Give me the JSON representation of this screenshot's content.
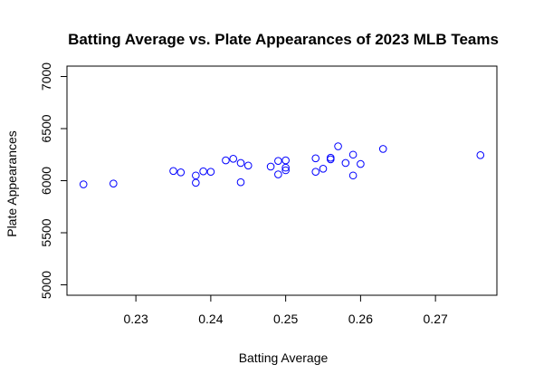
{
  "chart_data": {
    "type": "scatter",
    "title": "Batting Average vs. Plate Appearances of 2023 MLB Teams",
    "xlabel": "Batting Average",
    "ylabel": "Plate Appearances",
    "xlim": [
      0.2208,
      0.2782
    ],
    "ylim": [
      4900,
      7100
    ],
    "xticks": [
      "0.23",
      "0.24",
      "0.25",
      "0.26",
      "0.27"
    ],
    "yticks": [
      "5000",
      "5500",
      "6000",
      "6500",
      "7000"
    ],
    "grid": false,
    "marker": "open-circle",
    "marker_color": "#0000ff",
    "points": [
      {
        "x": 0.223,
        "y": 5965
      },
      {
        "x": 0.227,
        "y": 5972
      },
      {
        "x": 0.235,
        "y": 6093
      },
      {
        "x": 0.236,
        "y": 6080
      },
      {
        "x": 0.238,
        "y": 6050
      },
      {
        "x": 0.238,
        "y": 5980
      },
      {
        "x": 0.239,
        "y": 6090
      },
      {
        "x": 0.24,
        "y": 6085
      },
      {
        "x": 0.242,
        "y": 6195
      },
      {
        "x": 0.243,
        "y": 6210
      },
      {
        "x": 0.244,
        "y": 6170
      },
      {
        "x": 0.244,
        "y": 5985
      },
      {
        "x": 0.245,
        "y": 6145
      },
      {
        "x": 0.248,
        "y": 6135
      },
      {
        "x": 0.249,
        "y": 6190
      },
      {
        "x": 0.249,
        "y": 6060
      },
      {
        "x": 0.25,
        "y": 6195
      },
      {
        "x": 0.25,
        "y": 6125
      },
      {
        "x": 0.25,
        "y": 6100
      },
      {
        "x": 0.254,
        "y": 6215
      },
      {
        "x": 0.254,
        "y": 6085
      },
      {
        "x": 0.255,
        "y": 6115
      },
      {
        "x": 0.256,
        "y": 6220
      },
      {
        "x": 0.256,
        "y": 6205
      },
      {
        "x": 0.257,
        "y": 6330
      },
      {
        "x": 0.258,
        "y": 6170
      },
      {
        "x": 0.259,
        "y": 6250
      },
      {
        "x": 0.259,
        "y": 6050
      },
      {
        "x": 0.26,
        "y": 6160
      },
      {
        "x": 0.263,
        "y": 6305
      },
      {
        "x": 0.276,
        "y": 6245
      }
    ]
  }
}
